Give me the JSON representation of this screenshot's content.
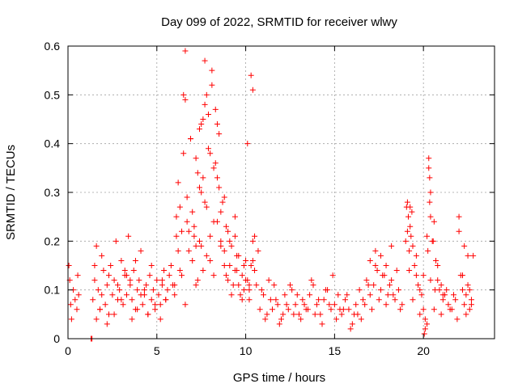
{
  "chart_data": {
    "type": "scatter",
    "title": "Day 099 of 2022, SRMTID for receiver wlwy",
    "xlabel": "GPS time / hours",
    "ylabel": "SRMTID / TECUs",
    "xlim": [
      0,
      24
    ],
    "ylim": [
      0,
      0.6
    ],
    "x_ticks": [
      0,
      5,
      10,
      15,
      20
    ],
    "x_tick_labels": [
      "0",
      "5",
      "10",
      "15",
      "20"
    ],
    "y_ticks": [
      0,
      0.1,
      0.2,
      0.3,
      0.4,
      0.5,
      0.6
    ],
    "y_tick_labels": [
      "0",
      "0.1",
      "0.2",
      "0.3",
      "0.4",
      "0.5",
      "0.6"
    ],
    "grid": true,
    "marker": "plus",
    "color": "#ff0000",
    "series": [
      {
        "name": "SRMTID",
        "x": [
          0.05,
          0.1,
          0.15,
          0.2,
          0.3,
          0.4,
          0.5,
          0.55,
          0.6,
          1.3,
          1.35,
          1.4,
          1.5,
          1.6,
          1.7,
          1.8,
          1.9,
          2.0,
          2.1,
          2.2,
          2.3,
          2.4,
          2.5,
          2.6,
          2.7,
          2.8,
          2.9,
          3.0,
          3.1,
          3.2,
          3.3,
          3.4,
          3.5,
          3.6,
          3.7,
          3.8,
          3.9,
          4.0,
          4.1,
          4.2,
          4.3,
          4.4,
          4.5,
          4.6,
          4.7,
          4.8,
          4.9,
          5.0,
          5.1,
          5.2,
          5.3,
          5.4,
          5.5,
          5.6,
          5.7,
          5.8,
          5.9,
          1.6,
          1.8,
          2.2,
          2.6,
          3.0,
          3.3,
          3.6,
          3.9,
          4.1,
          4.5,
          4.9,
          5.2,
          5.5,
          1.5,
          1.9,
          2.3,
          2.8,
          3.2,
          3.5,
          3.8,
          4.3,
          4.7,
          5.3,
          6.0,
          6.1,
          6.2,
          6.3,
          6.4,
          6.5,
          6.6,
          6.7,
          6.8,
          6.9,
          7.0,
          7.1,
          7.2,
          7.3,
          7.4,
          7.5,
          7.6,
          7.7,
          7.8,
          7.9,
          8.0,
          8.1,
          8.2,
          8.3,
          8.4,
          8.5,
          8.6,
          8.7,
          8.8,
          8.9,
          9.0,
          9.1,
          9.2,
          9.3,
          9.4,
          9.5,
          9.6,
          9.7,
          9.8,
          9.9,
          10.0,
          10.1,
          10.2,
          10.3,
          10.4,
          10.5,
          10.6,
          10.7,
          6.0,
          6.2,
          6.4,
          6.6,
          6.8,
          7.0,
          7.2,
          7.4,
          7.6,
          7.8,
          8.0,
          8.2,
          8.4,
          8.6,
          8.8,
          9.0,
          9.2,
          9.4,
          9.6,
          9.8,
          10.0,
          10.2,
          10.4,
          6.5,
          6.6,
          6.9,
          7.3,
          7.6,
          7.7,
          7.9,
          8.1,
          8.3,
          8.5,
          8.8,
          9.4,
          10.1,
          10.3,
          10.4,
          10.5,
          7.5,
          7.8,
          8.0,
          8.2,
          7.1,
          7.4,
          7.7,
          8.6,
          8.9,
          6.1,
          6.3,
          6.7,
          7.2,
          7.5,
          8.4,
          9.1,
          9.5,
          9.9,
          10.2,
          10.8,
          11.0,
          11.2,
          11.4,
          11.6,
          11.8,
          12.0,
          12.2,
          12.4,
          12.6,
          12.8,
          13.0,
          13.2,
          13.4,
          13.6,
          13.8,
          14.0,
          14.2,
          14.4,
          14.6,
          14.8,
          15.0,
          15.2,
          15.4,
          15.6,
          15.8,
          16.0,
          16.2,
          16.4,
          16.6,
          16.8,
          17.0,
          17.2,
          17.4,
          17.6,
          17.8,
          18.0,
          18.2,
          18.4,
          18.6,
          18.8,
          10.9,
          11.3,
          11.7,
          12.1,
          12.5,
          12.9,
          13.3,
          13.7,
          14.1,
          14.5,
          14.9,
          15.3,
          15.7,
          16.1,
          16.5,
          16.9,
          17.3,
          17.7,
          18.1,
          18.5,
          11.1,
          11.5,
          11.9,
          12.3,
          12.7,
          13.1,
          13.5,
          13.9,
          14.3,
          14.7,
          15.1,
          15.5,
          15.9,
          16.3,
          16.7,
          17.1,
          17.5,
          17.9,
          18.3,
          18.7,
          17.0,
          17.3,
          17.6,
          17.9,
          18.2,
          19.0,
          19.05,
          19.1,
          19.15,
          19.2,
          19.25,
          19.3,
          19.35,
          19.4,
          19.5,
          19.6,
          19.7,
          19.8,
          19.9,
          20.0,
          20.1,
          20.2,
          20.25,
          20.3,
          20.35,
          20.4,
          20.5,
          20.6,
          20.7,
          20.8,
          20.9,
          21.0,
          21.1,
          21.2,
          21.4,
          21.6,
          21.8,
          22.0,
          22.1,
          22.2,
          22.3,
          22.4,
          22.5,
          22.6,
          22.7,
          19.2,
          19.6,
          20.0,
          20.4,
          20.8,
          21.3,
          21.7,
          22.2,
          22.6,
          19.4,
          19.8,
          20.2,
          20.6,
          21.0,
          21.5,
          21.9,
          22.4,
          20.3,
          20.35,
          20.4,
          19.1,
          19.25,
          20.55,
          22.3,
          22.5,
          22.8,
          20.05,
          20.1,
          22.0,
          20.65,
          21.1,
          22.7
        ],
        "y": [
          0.15,
          0.12,
          0.07,
          0.04,
          0.1,
          0.08,
          0.06,
          0.13,
          0.09,
          0.0,
          0.0,
          0.08,
          0.12,
          0.19,
          0.1,
          0.06,
          0.09,
          0.14,
          0.07,
          0.11,
          0.05,
          0.15,
          0.09,
          0.12,
          0.2,
          0.08,
          0.1,
          0.16,
          0.07,
          0.13,
          0.09,
          0.21,
          0.11,
          0.08,
          0.14,
          0.06,
          0.1,
          0.12,
          0.18,
          0.07,
          0.09,
          0.11,
          0.05,
          0.13,
          0.08,
          0.1,
          0.06,
          0.12,
          0.09,
          0.07,
          0.11,
          0.14,
          0.08,
          0.1,
          0.13,
          0.15,
          0.11,
          0.04,
          0.06,
          0.03,
          0.05,
          0.08,
          0.13,
          0.04,
          0.06,
          0.09,
          0.05,
          0.07,
          0.04,
          0.08,
          0.15,
          0.17,
          0.13,
          0.11,
          0.14,
          0.12,
          0.16,
          0.1,
          0.15,
          0.12,
          0.11,
          0.25,
          0.32,
          0.14,
          0.22,
          0.38,
          0.49,
          0.29,
          0.18,
          0.41,
          0.26,
          0.21,
          0.37,
          0.12,
          0.43,
          0.19,
          0.33,
          0.48,
          0.27,
          0.46,
          0.16,
          0.52,
          0.24,
          0.36,
          0.44,
          0.31,
          0.2,
          0.28,
          0.18,
          0.13,
          0.22,
          0.15,
          0.19,
          0.11,
          0.21,
          0.14,
          0.17,
          0.09,
          0.13,
          0.1,
          0.16,
          0.12,
          0.08,
          0.15,
          0.2,
          0.14,
          0.11,
          0.18,
          0.09,
          0.18,
          0.13,
          0.07,
          0.22,
          0.16,
          0.11,
          0.2,
          0.14,
          0.17,
          0.21,
          0.13,
          0.24,
          0.19,
          0.15,
          0.12,
          0.09,
          0.14,
          0.11,
          0.08,
          0.12,
          0.1,
          0.16,
          0.5,
          0.59,
          0.41,
          0.34,
          0.45,
          0.57,
          0.39,
          0.55,
          0.47,
          0.42,
          0.29,
          0.25,
          0.4,
          0.54,
          0.51,
          0.21,
          0.44,
          0.5,
          0.38,
          0.35,
          0.23,
          0.31,
          0.28,
          0.26,
          0.23,
          0.21,
          0.27,
          0.24,
          0.19,
          0.3,
          0.33,
          0.2,
          0.17,
          0.15,
          0.11,
          0.06,
          0.09,
          0.05,
          0.08,
          0.11,
          0.07,
          0.04,
          0.09,
          0.06,
          0.1,
          0.07,
          0.05,
          0.08,
          0.06,
          0.09,
          0.11,
          0.07,
          0.05,
          0.08,
          0.1,
          0.06,
          0.07,
          0.09,
          0.05,
          0.08,
          0.06,
          0.03,
          0.07,
          0.1,
          0.08,
          0.12,
          0.09,
          0.11,
          0.14,
          0.1,
          0.13,
          0.09,
          0.12,
          0.08,
          0.1,
          0.07,
          0.1,
          0.12,
          0.08,
          0.05,
          0.11,
          0.09,
          0.07,
          0.12,
          0.08,
          0.1,
          0.13,
          0.06,
          0.09,
          0.05,
          0.04,
          0.11,
          0.15,
          0.13,
          0.11,
          0.14,
          0.04,
          0.06,
          0.03,
          0.07,
          0.05,
          0.04,
          0.06,
          0.05,
          0.03,
          0.07,
          0.04,
          0.06,
          0.02,
          0.05,
          0.07,
          0.06,
          0.08,
          0.07,
          0.09,
          0.06,
          0.16,
          0.18,
          0.17,
          0.15,
          0.19,
          0.2,
          0.27,
          0.22,
          0.25,
          0.18,
          0.27,
          0.21,
          0.26,
          0.19,
          0.15,
          0.13,
          0.11,
          0.1,
          0.09,
          0.06,
          0.04,
          0.21,
          0.18,
          0.35,
          0.28,
          0.25,
          0.2,
          0.24,
          0.16,
          0.12,
          0.1,
          0.11,
          0.08,
          0.09,
          0.07,
          0.06,
          0.08,
          0.25,
          0.13,
          0.1,
          0.07,
          0.09,
          0.11,
          0.06,
          0.08,
          0.14,
          0.17,
          0.13,
          0.12,
          0.15,
          0.1,
          0.09,
          0.13,
          0.1,
          0.08,
          0.05,
          0.03,
          0.06,
          0.05,
          0.06,
          0.04,
          0.05,
          0.37,
          0.33,
          0.3,
          0.28,
          0.23,
          0.2,
          0.19,
          0.17,
          0.17,
          0.01,
          0.02,
          0.22,
          0.1,
          0.09,
          0.07
        ]
      }
    ]
  }
}
